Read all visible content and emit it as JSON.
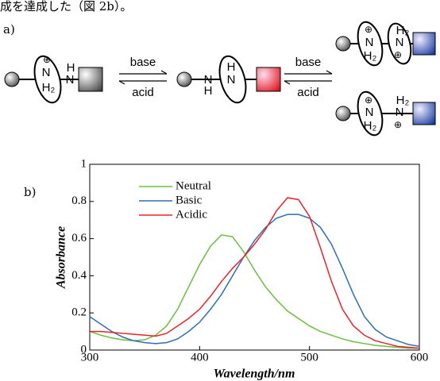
{
  "text": {
    "line1": "成を達成した（図 2b）。",
    "panel_a": "a)",
    "panel_b": "b)"
  },
  "scheme": {
    "arrows": [
      {
        "top": "base",
        "bottom": "acid"
      },
      {
        "top": "base",
        "bottom": "acid"
      }
    ],
    "molecules": [
      {
        "labels": [
          "⊕",
          "N",
          "H₂",
          "H",
          "N"
        ]
      },
      {
        "labels": [
          "N",
          "H",
          "H",
          "N"
        ]
      },
      {
        "labels": [
          "⊕",
          "N",
          "H₂",
          "H₂",
          "N",
          "⊕"
        ]
      },
      {
        "labels": [
          "⊕",
          "N",
          "H₂",
          "H₂",
          "N",
          "⊕"
        ]
      }
    ]
  },
  "chart_data": {
    "type": "line",
    "x_label": "Wavelength/nm",
    "y_label": "Absorbance",
    "x": [
      300,
      310,
      320,
      330,
      340,
      350,
      360,
      370,
      380,
      390,
      400,
      410,
      420,
      430,
      440,
      450,
      460,
      470,
      480,
      490,
      500,
      510,
      520,
      530,
      540,
      550,
      560,
      570,
      580,
      590,
      600
    ],
    "series": [
      {
        "name": "Neutral",
        "color": "#6abf3f",
        "values": [
          0.1,
          0.08,
          0.065,
          0.055,
          0.05,
          0.055,
          0.08,
          0.13,
          0.22,
          0.34,
          0.46,
          0.56,
          0.62,
          0.61,
          0.53,
          0.43,
          0.34,
          0.27,
          0.21,
          0.17,
          0.13,
          0.1,
          0.08,
          0.06,
          0.045,
          0.035,
          0.025,
          0.02,
          0.015,
          0.01,
          0.01
        ]
      },
      {
        "name": "Basic",
        "color": "#2f6db5",
        "values": [
          0.18,
          0.14,
          0.1,
          0.07,
          0.05,
          0.04,
          0.035,
          0.04,
          0.06,
          0.1,
          0.15,
          0.22,
          0.3,
          0.4,
          0.5,
          0.59,
          0.66,
          0.71,
          0.73,
          0.73,
          0.71,
          0.66,
          0.57,
          0.44,
          0.3,
          0.18,
          0.11,
          0.07,
          0.05,
          0.03,
          0.02
        ]
      },
      {
        "name": "Acidic",
        "color": "#e8232a",
        "values": [
          0.1,
          0.1,
          0.095,
          0.09,
          0.085,
          0.08,
          0.075,
          0.09,
          0.13,
          0.17,
          0.22,
          0.29,
          0.37,
          0.44,
          0.5,
          0.57,
          0.65,
          0.75,
          0.82,
          0.81,
          0.72,
          0.55,
          0.37,
          0.22,
          0.13,
          0.08,
          0.05,
          0.035,
          0.02,
          0.015,
          0.01
        ]
      }
    ],
    "xlim": [
      300,
      600
    ],
    "ylim": [
      0,
      1
    ],
    "xticks": [
      300,
      400,
      500,
      600
    ],
    "yticks": [
      0,
      0.2,
      0.4,
      0.6,
      0.8,
      1
    ],
    "legend": "upper-left"
  }
}
